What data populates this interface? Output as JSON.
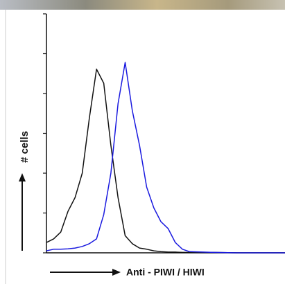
{
  "chart_data": {
    "type": "line",
    "x_label": "Anti - PIWI / HIWI",
    "y_label": "# cells",
    "x": [
      0,
      3,
      6,
      9,
      12,
      15,
      18,
      21,
      24,
      27,
      30,
      33,
      36,
      39,
      42,
      45,
      48,
      51,
      54,
      57,
      60,
      70,
      80,
      90,
      100
    ],
    "series": [
      {
        "color": "#111111",
        "values": [
          0.26,
          0.35,
          0.52,
          1.04,
          1.39,
          2.0,
          3.39,
          4.61,
          4.26,
          2.7,
          1.39,
          0.43,
          0.23,
          0.12,
          0.09,
          0.05,
          0.03,
          0.02,
          0.02,
          0.01,
          0.01,
          0.01,
          0,
          0,
          0
        ]
      },
      {
        "color": "#1a1adf",
        "values": [
          0.05,
          0.09,
          0.09,
          0.1,
          0.12,
          0.16,
          0.23,
          0.35,
          0.96,
          2.0,
          3.74,
          4.78,
          3.57,
          2.7,
          1.65,
          1.13,
          0.78,
          0.61,
          0.26,
          0.09,
          0.03,
          0.01,
          0,
          0,
          0
        ]
      }
    ],
    "xlim": [
      0,
      100
    ],
    "ylim": [
      0,
      6
    ],
    "yticks": [
      0,
      1,
      2,
      3,
      4,
      5,
      6
    ]
  }
}
